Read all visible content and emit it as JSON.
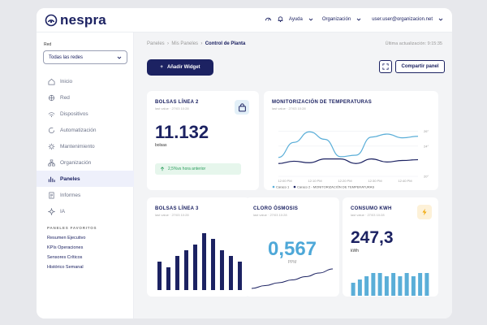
{
  "brand": {
    "name": "nespra"
  },
  "topbar": {
    "help": "Ayuda",
    "org": "Organización",
    "user": "user.user@organizacion.net"
  },
  "sidebar": {
    "network_label": "Red",
    "network_select": "Todas las redes",
    "items": [
      {
        "label": "Inicio",
        "icon": "home-icon"
      },
      {
        "label": "Red",
        "icon": "network-icon"
      },
      {
        "label": "Dispositivos",
        "icon": "wifi-icon"
      },
      {
        "label": "Automatización",
        "icon": "automation-icon"
      },
      {
        "label": "Mantenimiento",
        "icon": "gear-icon"
      },
      {
        "label": "Organización",
        "icon": "org-icon"
      },
      {
        "label": "Paneles",
        "icon": "bar-chart-icon",
        "active": true
      },
      {
        "label": "Informes",
        "icon": "report-icon"
      },
      {
        "label": "IA",
        "icon": "sparkle-icon"
      }
    ],
    "favorites_title": "PANELES FAVORITOS",
    "favorites": [
      "Resumen Ejecutivo",
      "KPIs Operaciones",
      "Sensores Críticos",
      "Histórico Semanal"
    ]
  },
  "breadcrumb": {
    "b1": "Paneles",
    "b2": "Mis Paneles",
    "b3": "Control de Planta"
  },
  "last_update": "Última actualización: 9:15:35",
  "actions": {
    "add_widget": "Añadir Widget",
    "share": "Compartir panel"
  },
  "widgets": {
    "bolsas2": {
      "title": "BOLSAS LÍNEA 2",
      "sub": "last value · 27/03 10:28",
      "value": "11.132",
      "unit": "bolsas",
      "delta": "2,5%vs hora anterior"
    },
    "temps": {
      "title": "MONITORIZACIÓN DE TEMPERATURAS",
      "sub": "last value · 27/03 10:28",
      "y_ticks": [
        "26°",
        "24°",
        "20°"
      ],
      "x_ticks": [
        "12:00 PM",
        "12:10 PM",
        "12:20 PM",
        "12:30 PM",
        "12:40 PM"
      ],
      "legend": [
        "Caraco 1",
        "Caraco 2 - MONITORIZACIÓN DE TEMPERATURAS"
      ],
      "series1_color": "#5aaed8",
      "series2_color": "#1c2262"
    },
    "bolsas3": {
      "title": "BOLSAS LÍNEA 3",
      "sub": "last value · 27/03 10:28"
    },
    "cloro": {
      "title": "CLORO ÓSMOSIS",
      "sub": "last value · 27/03 10:28",
      "value": "0,567",
      "unit": "PPM"
    },
    "consumo": {
      "title": "CONSUMO KWH",
      "sub": "last value · 27/03 10:28",
      "value": "247,3",
      "unit": "kWh"
    }
  },
  "chart_data": [
    {
      "type": "line",
      "x": [
        "12:00 PM",
        "12:05 PM",
        "12:10 PM",
        "12:15 PM",
        "12:20 PM",
        "12:25 PM",
        "12:30 PM",
        "12:35 PM",
        "12:40 PM",
        "12:45 PM"
      ],
      "series": [
        {
          "name": "Caraco 1",
          "values": [
            22.5,
            24.5,
            25.9,
            24.9,
            22.6,
            22.8,
            25.2,
            25.6,
            25.1,
            25.3
          ]
        },
        {
          "name": "Caraco 2 - MONITORIZACIÓN DE TEMPERATURAS",
          "values": [
            21.7,
            22.0,
            21.8,
            22.3,
            22.3,
            21.7,
            22.3,
            21.9,
            22.1,
            22.2
          ]
        }
      ],
      "ylim": [
        20,
        27
      ]
    },
    {
      "type": "bar",
      "values": [
        5,
        4,
        6,
        7,
        8,
        10,
        9,
        7,
        6,
        5
      ],
      "color": "#1c2262"
    },
    {
      "type": "line",
      "values": [
        0.1,
        0.17,
        0.24,
        0.31,
        0.39,
        0.48,
        0.58
      ]
    },
    {
      "type": "bar",
      "values": [
        4,
        5,
        6,
        7,
        7,
        6,
        7,
        6,
        7,
        6,
        7,
        7
      ],
      "color": "#5aaed8"
    }
  ]
}
